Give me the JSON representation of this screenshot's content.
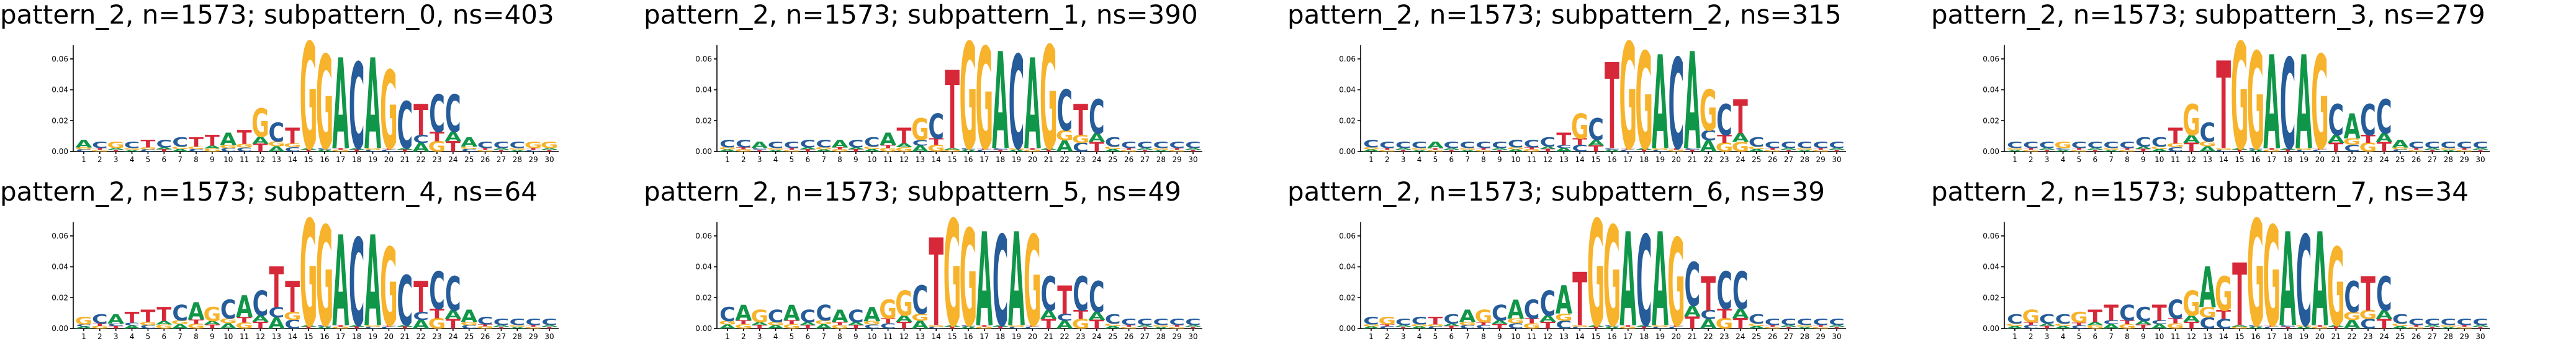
{
  "colors": {
    "A": "#109648",
    "C": "#255C99",
    "G": "#F7B32B",
    "T": "#D62839"
  },
  "chart_data": [
    {
      "type": "sequence-logo",
      "title": "pattern_2, n=1573; subpattern_0, ns=403",
      "ylim": [
        0,
        0.07
      ],
      "yticks": [
        "0.00",
        "0.02",
        "0.04",
        "0.06"
      ],
      "positions": [
        "1",
        "2",
        "3",
        "4",
        "5",
        "6",
        "7",
        "8",
        "9",
        "10",
        "11",
        "12",
        "13",
        "14",
        "15",
        "16",
        "17",
        "18",
        "19",
        "20",
        "21",
        "22",
        "23",
        "24",
        "25",
        "26",
        "27",
        "28",
        "29",
        "30"
      ],
      "top_letters": [
        "A",
        "C",
        "G",
        "C",
        "T",
        "C",
        "C",
        "T",
        "T",
        "A",
        "T",
        "G",
        "C",
        "T",
        "G",
        "G",
        "A",
        "C",
        "A",
        "G",
        "C",
        "T",
        "C",
        "C",
        "A",
        "C",
        "C",
        "C",
        "G",
        "G"
      ],
      "letter_heights": [
        0.005,
        0.004,
        0.004,
        0.004,
        0.005,
        0.005,
        0.006,
        0.006,
        0.007,
        0.008,
        0.009,
        0.018,
        0.012,
        0.01,
        0.068,
        0.06,
        0.058,
        0.055,
        0.058,
        0.05,
        0.03,
        0.02,
        0.024,
        0.024,
        0.006,
        0.004,
        0.004,
        0.004,
        0.004,
        0.004
      ]
    },
    {
      "type": "sequence-logo",
      "title": "pattern_2, n=1573; subpattern_1, ns=390",
      "ylim": [
        0,
        0.07
      ],
      "yticks": [
        "0.00",
        "0.02",
        "0.04",
        "0.06"
      ],
      "positions": [
        "1",
        "2",
        "3",
        "4",
        "5",
        "6",
        "7",
        "8",
        "9",
        "10",
        "11",
        "12",
        "13",
        "14",
        "15",
        "16",
        "17",
        "18",
        "19",
        "20",
        "21",
        "22",
        "23",
        "24",
        "25",
        "26",
        "27",
        "28",
        "29",
        "30"
      ],
      "top_letters": [
        "C",
        "C",
        "A",
        "C",
        "C",
        "C",
        "C",
        "A",
        "C",
        "C",
        "A",
        "T",
        "G",
        "C",
        "T",
        "G",
        "G",
        "A",
        "C",
        "A",
        "G",
        "C",
        "T",
        "C",
        "C",
        "C",
        "C",
        "C",
        "C",
        "C"
      ],
      "letter_heights": [
        0.005,
        0.005,
        0.004,
        0.004,
        0.004,
        0.005,
        0.005,
        0.005,
        0.005,
        0.006,
        0.008,
        0.01,
        0.014,
        0.016,
        0.05,
        0.068,
        0.065,
        0.062,
        0.06,
        0.058,
        0.066,
        0.026,
        0.02,
        0.022,
        0.006,
        0.004,
        0.004,
        0.004,
        0.004,
        0.004
      ]
    },
    {
      "type": "sequence-logo",
      "title": "pattern_2, n=1573; subpattern_2, ns=315",
      "ylim": [
        0,
        0.07
      ],
      "yticks": [
        "0.00",
        "0.02",
        "0.04",
        "0.06"
      ],
      "positions": [
        "1",
        "2",
        "3",
        "4",
        "5",
        "6",
        "7",
        "8",
        "9",
        "10",
        "11",
        "12",
        "13",
        "14",
        "15",
        "16",
        "17",
        "18",
        "19",
        "20",
        "21",
        "22",
        "23",
        "24",
        "25",
        "26",
        "27",
        "28",
        "29",
        "30"
      ],
      "top_letters": [
        "C",
        "C",
        "C",
        "C",
        "A",
        "C",
        "C",
        "C",
        "C",
        "C",
        "C",
        "C",
        "T",
        "G",
        "C",
        "T",
        "G",
        "G",
        "A",
        "C",
        "A",
        "G",
        "C",
        "T",
        "C",
        "C",
        "C",
        "C",
        "C",
        "C"
      ],
      "letter_heights": [
        0.005,
        0.004,
        0.004,
        0.004,
        0.004,
        0.004,
        0.004,
        0.004,
        0.004,
        0.005,
        0.005,
        0.006,
        0.008,
        0.016,
        0.014,
        0.055,
        0.068,
        0.062,
        0.06,
        0.058,
        0.062,
        0.026,
        0.02,
        0.022,
        0.006,
        0.004,
        0.004,
        0.004,
        0.004,
        0.004
      ]
    },
    {
      "type": "sequence-logo",
      "title": "pattern_2, n=1573; subpattern_3, ns=279",
      "ylim": [
        0,
        0.07
      ],
      "yticks": [
        "0.00",
        "0.02",
        "0.04",
        "0.06"
      ],
      "positions": [
        "1",
        "2",
        "3",
        "4",
        "5",
        "6",
        "7",
        "8",
        "9",
        "10",
        "11",
        "12",
        "13",
        "14",
        "15",
        "16",
        "17",
        "18",
        "19",
        "20",
        "21",
        "22",
        "23",
        "24",
        "25",
        "26",
        "27",
        "28",
        "29",
        "30"
      ],
      "top_letters": [
        "C",
        "C",
        "C",
        "G",
        "C",
        "C",
        "C",
        "C",
        "C",
        "C",
        "T",
        "G",
        "C",
        "T",
        "G",
        "G",
        "A",
        "C",
        "A",
        "G",
        "C",
        "A",
        "C",
        "C",
        "A",
        "C",
        "C",
        "C",
        "C",
        "C"
      ],
      "letter_heights": [
        0.004,
        0.004,
        0.004,
        0.004,
        0.004,
        0.004,
        0.004,
        0.004,
        0.006,
        0.006,
        0.01,
        0.02,
        0.012,
        0.056,
        0.068,
        0.062,
        0.06,
        0.058,
        0.06,
        0.06,
        0.02,
        0.016,
        0.02,
        0.022,
        0.005,
        0.004,
        0.004,
        0.004,
        0.004,
        0.004
      ]
    },
    {
      "type": "sequence-logo",
      "title": "pattern_2, n=1573; subpattern_4, ns=64",
      "ylim": [
        0,
        0.07
      ],
      "yticks": [
        "0.00",
        "0.02",
        "0.04",
        "0.06"
      ],
      "positions": [
        "1",
        "2",
        "3",
        "4",
        "5",
        "6",
        "7",
        "8",
        "9",
        "10",
        "11",
        "12",
        "13",
        "14",
        "15",
        "16",
        "17",
        "18",
        "19",
        "20",
        "21",
        "22",
        "23",
        "24",
        "25",
        "26",
        "27",
        "28",
        "29",
        "30"
      ],
      "top_letters": [
        "G",
        "C",
        "A",
        "T",
        "T",
        "T",
        "C",
        "A",
        "G",
        "C",
        "A",
        "C",
        "T",
        "T",
        "G",
        "G",
        "A",
        "C",
        "A",
        "G",
        "C",
        "T",
        "C",
        "C",
        "A",
        "C",
        "C",
        "C",
        "C",
        "C"
      ],
      "letter_heights": [
        0.005,
        0.006,
        0.006,
        0.007,
        0.008,
        0.009,
        0.01,
        0.011,
        0.009,
        0.012,
        0.014,
        0.016,
        0.026,
        0.02,
        0.068,
        0.064,
        0.058,
        0.056,
        0.058,
        0.05,
        0.032,
        0.02,
        0.024,
        0.022,
        0.008,
        0.005,
        0.004,
        0.004,
        0.004,
        0.004
      ]
    },
    {
      "type": "sequence-logo",
      "title": "pattern_2, n=1573; subpattern_5, ns=49",
      "ylim": [
        0,
        0.07
      ],
      "yticks": [
        "0.00",
        "0.02",
        "0.04",
        "0.06"
      ],
      "positions": [
        "1",
        "2",
        "3",
        "4",
        "5",
        "6",
        "7",
        "8",
        "9",
        "10",
        "11",
        "12",
        "13",
        "14",
        "15",
        "16",
        "17",
        "18",
        "19",
        "20",
        "21",
        "22",
        "23",
        "24",
        "25",
        "26",
        "27",
        "28",
        "29",
        "30"
      ],
      "top_letters": [
        "C",
        "A",
        "G",
        "C",
        "A",
        "C",
        "C",
        "A",
        "C",
        "A",
        "G",
        "G",
        "C",
        "T",
        "G",
        "G",
        "A",
        "C",
        "A",
        "G",
        "C",
        "T",
        "C",
        "C",
        "C",
        "C",
        "C",
        "C",
        "C",
        "C"
      ],
      "letter_heights": [
        0.009,
        0.01,
        0.008,
        0.008,
        0.01,
        0.008,
        0.01,
        0.008,
        0.008,
        0.009,
        0.012,
        0.016,
        0.018,
        0.056,
        0.068,
        0.062,
        0.06,
        0.058,
        0.06,
        0.058,
        0.022,
        0.018,
        0.022,
        0.02,
        0.006,
        0.004,
        0.004,
        0.004,
        0.004,
        0.004
      ]
    },
    {
      "type": "sequence-logo",
      "title": "pattern_2, n=1573; subpattern_6, ns=39",
      "ylim": [
        0,
        0.07
      ],
      "yticks": [
        "0.00",
        "0.02",
        "0.04",
        "0.06"
      ],
      "positions": [
        "1",
        "2",
        "3",
        "4",
        "5",
        "6",
        "7",
        "8",
        "9",
        "10",
        "11",
        "12",
        "13",
        "14",
        "15",
        "16",
        "17",
        "18",
        "19",
        "20",
        "21",
        "22",
        "23",
        "24",
        "25",
        "26",
        "27",
        "28",
        "29",
        "30"
      ],
      "top_letters": [
        "C",
        "G",
        "C",
        "C",
        "T",
        "C",
        "A",
        "G",
        "C",
        "A",
        "C",
        "C",
        "A",
        "T",
        "G",
        "G",
        "A",
        "C",
        "A",
        "G",
        "C",
        "T",
        "C",
        "C",
        "C",
        "C",
        "C",
        "C",
        "C",
        "C"
      ],
      "letter_heights": [
        0.005,
        0.005,
        0.004,
        0.005,
        0.005,
        0.006,
        0.008,
        0.008,
        0.01,
        0.012,
        0.012,
        0.016,
        0.018,
        0.034,
        0.068,
        0.064,
        0.06,
        0.058,
        0.06,
        0.056,
        0.028,
        0.022,
        0.024,
        0.024,
        0.006,
        0.004,
        0.004,
        0.004,
        0.004,
        0.004
      ]
    },
    {
      "type": "sequence-logo",
      "title": "pattern_2, n=1573; subpattern_7, ns=34",
      "ylim": [
        0,
        0.07
      ],
      "yticks": [
        "0.00",
        "0.02",
        "0.04",
        "0.06"
      ],
      "positions": [
        "1",
        "2",
        "3",
        "4",
        "5",
        "6",
        "7",
        "8",
        "9",
        "10",
        "11",
        "12",
        "13",
        "14",
        "15",
        "16",
        "17",
        "18",
        "19",
        "20",
        "21",
        "22",
        "23",
        "24",
        "25",
        "26",
        "27",
        "28",
        "29",
        "30"
      ],
      "top_letters": [
        "C",
        "G",
        "C",
        "C",
        "G",
        "T",
        "T",
        "C",
        "C",
        "T",
        "C",
        "G",
        "A",
        "G",
        "T",
        "G",
        "G",
        "A",
        "C",
        "A",
        "G",
        "C",
        "T",
        "C",
        "C",
        "C",
        "C",
        "C",
        "C",
        "C"
      ],
      "letter_heights": [
        0.006,
        0.008,
        0.006,
        0.006,
        0.007,
        0.008,
        0.01,
        0.01,
        0.009,
        0.01,
        0.012,
        0.016,
        0.026,
        0.022,
        0.04,
        0.068,
        0.064,
        0.06,
        0.058,
        0.06,
        0.05,
        0.02,
        0.022,
        0.022,
        0.006,
        0.004,
        0.004,
        0.004,
        0.004,
        0.004
      ]
    }
  ]
}
